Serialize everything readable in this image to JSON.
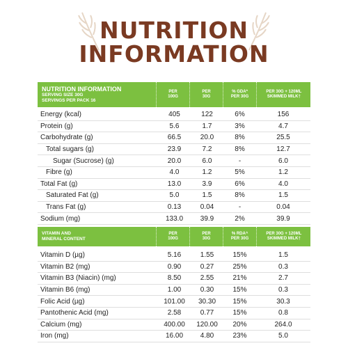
{
  "heading": {
    "line1": "NUTRITION",
    "line2": "INFORMATION"
  },
  "colors": {
    "brown": "#7a3a22",
    "green": "#7cc040"
  },
  "nutrition_header": {
    "title": "NUTRITION INFORMATION",
    "serving": "SERVING SIZE 30G",
    "servings": "SERVINGS PER PACK 16",
    "cols": [
      {
        "l1": "PER",
        "l2": "100G"
      },
      {
        "l1": "PER",
        "l2": "30G"
      },
      {
        "l1": "% GDA*",
        "l2": "PER 30G"
      },
      {
        "l1": "PER 30G + 120ML",
        "l2": "SKIMMED MILK†"
      }
    ]
  },
  "nutrition_rows": [
    {
      "label": "Energy (kcal)",
      "v": [
        "405",
        "122",
        "6%",
        "156"
      ]
    },
    {
      "label": "Protein (g)",
      "v": [
        "5.6",
        "1.7",
        "3%",
        "4.7"
      ]
    },
    {
      "label": "Carbohydrate (g)",
      "v": [
        "66.5",
        "20.0",
        "8%",
        "25.5"
      ]
    },
    {
      "label": "Total sugars (g)",
      "v": [
        "23.9",
        "7.2",
        "8%",
        "12.7"
      ]
    },
    {
      "label": "Sugar (Sucrose) (g)",
      "v": [
        "20.0",
        "6.0",
        "-",
        "6.0"
      ]
    },
    {
      "label": "Fibre (g)",
      "v": [
        "4.0",
        "1.2",
        "5%",
        "1.2"
      ]
    },
    {
      "label": "Total Fat (g)",
      "v": [
        "13.0",
        "3.9",
        "6%",
        "4.0"
      ]
    },
    {
      "label": "Saturated Fat (g)",
      "v": [
        "5.0",
        "1.5",
        "8%",
        "1.5"
      ]
    },
    {
      "label": "Trans Fat (g)",
      "v": [
        "0.13",
        "0.04",
        "-",
        "0.04"
      ]
    },
    {
      "label": "Sodium (mg)",
      "v": [
        "133.0",
        "39.9",
        "2%",
        "39.9"
      ]
    }
  ],
  "vitamin_header": {
    "title1": "VITAMIN AND",
    "title2": "MINERAL CONTENT",
    "cols": [
      {
        "l1": "PER",
        "l2": "100G"
      },
      {
        "l1": "PER",
        "l2": "30G"
      },
      {
        "l1": "% RDA^",
        "l2": "PER 30G"
      },
      {
        "l1": "PER 30G + 120ML",
        "l2": "SKIMMED MILK†"
      }
    ]
  },
  "vitamin_rows": [
    {
      "label": "Vitamin D (µg)",
      "v": [
        "5.16",
        "1.55",
        "15%",
        "1.5"
      ]
    },
    {
      "label": "Vitamin B2 (mg)",
      "v": [
        "0.90",
        "0.27",
        "25%",
        "0.3"
      ]
    },
    {
      "label": "Vitamin B3 (Niacin) (mg)",
      "v": [
        "8.50",
        "2.55",
        "21%",
        "2.7"
      ]
    },
    {
      "label": "Vitamin B6 (mg)",
      "v": [
        "1.00",
        "0.30",
        "15%",
        "0.3"
      ]
    },
    {
      "label": "Folic Acid (µg)",
      "v": [
        "101.00",
        "30.30",
        "15%",
        "30.3"
      ]
    },
    {
      "label": "Pantothenic Acid (mg)",
      "v": [
        "2.58",
        "0.77",
        "15%",
        "0.8"
      ]
    },
    {
      "label": "Calcium (mg)",
      "v": [
        "400.00",
        "120.00",
        "20%",
        "264.0"
      ]
    },
    {
      "label": "Iron  (mg)",
      "v": [
        "16.00",
        "4.80",
        "23%",
        "5.0"
      ]
    }
  ]
}
